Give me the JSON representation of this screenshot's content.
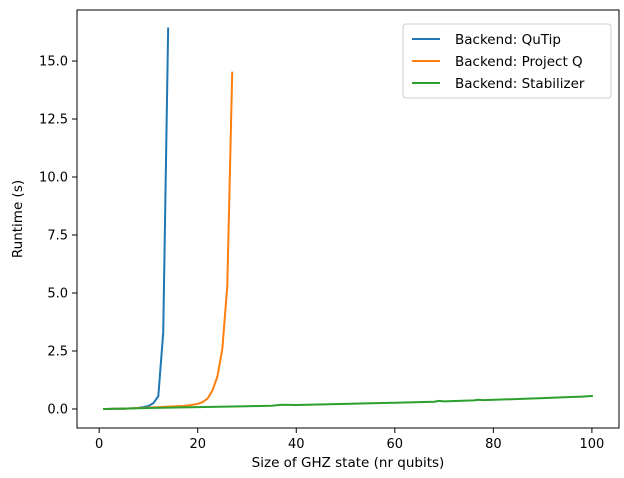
{
  "chart_data": {
    "type": "line",
    "title": "",
    "xlabel": "Size of GHZ state (nr qubits)",
    "ylabel": "Runtime (s)",
    "xlim": [
      -4.5,
      105.5
    ],
    "ylim": [
      -0.82,
      17.2
    ],
    "xticks": [
      0,
      20,
      40,
      60,
      80,
      100
    ],
    "xtick_labels": [
      "0",
      "20",
      "40",
      "60",
      "80",
      "100"
    ],
    "yticks": [
      0.0,
      2.5,
      5.0,
      7.5,
      10.0,
      12.5,
      15.0
    ],
    "ytick_labels": [
      "0.0",
      "2.5",
      "5.0",
      "7.5",
      "10.0",
      "12.5",
      "15.0"
    ],
    "grid": false,
    "legend_position": "top-right",
    "series": [
      {
        "name": "Backend: QuTip",
        "color": "#1f77b4",
        "x": [
          1,
          2,
          3,
          4,
          5,
          6,
          7,
          8,
          9,
          10,
          11,
          12,
          13,
          14
        ],
        "y": [
          0.0,
          0.0,
          0.01,
          0.01,
          0.01,
          0.02,
          0.03,
          0.05,
          0.08,
          0.13,
          0.25,
          0.55,
          3.3,
          16.4
        ]
      },
      {
        "name": "Backend: Project Q",
        "color": "#ff7f0e",
        "x": [
          1,
          2,
          3,
          4,
          5,
          6,
          7,
          8,
          9,
          10,
          11,
          12,
          13,
          14,
          15,
          16,
          17,
          18,
          19,
          20,
          21,
          22,
          23,
          24,
          25,
          26,
          27
        ],
        "y": [
          0.0,
          0.0,
          0.01,
          0.01,
          0.01,
          0.02,
          0.03,
          0.04,
          0.05,
          0.06,
          0.07,
          0.08,
          0.09,
          0.1,
          0.11,
          0.12,
          0.13,
          0.15,
          0.18,
          0.22,
          0.3,
          0.45,
          0.8,
          1.4,
          2.6,
          5.3,
          14.5
        ]
      },
      {
        "name": "Backend: Stabilizer",
        "color": "#2ca02c",
        "x": [
          1,
          10,
          20,
          30,
          35,
          37,
          40,
          50,
          60,
          68,
          69,
          70,
          76,
          77,
          78,
          85,
          90,
          95,
          98,
          100
        ],
        "y": [
          0.0,
          0.04,
          0.08,
          0.12,
          0.14,
          0.18,
          0.17,
          0.22,
          0.27,
          0.31,
          0.35,
          0.33,
          0.37,
          0.4,
          0.38,
          0.43,
          0.47,
          0.51,
          0.53,
          0.56
        ]
      }
    ]
  }
}
